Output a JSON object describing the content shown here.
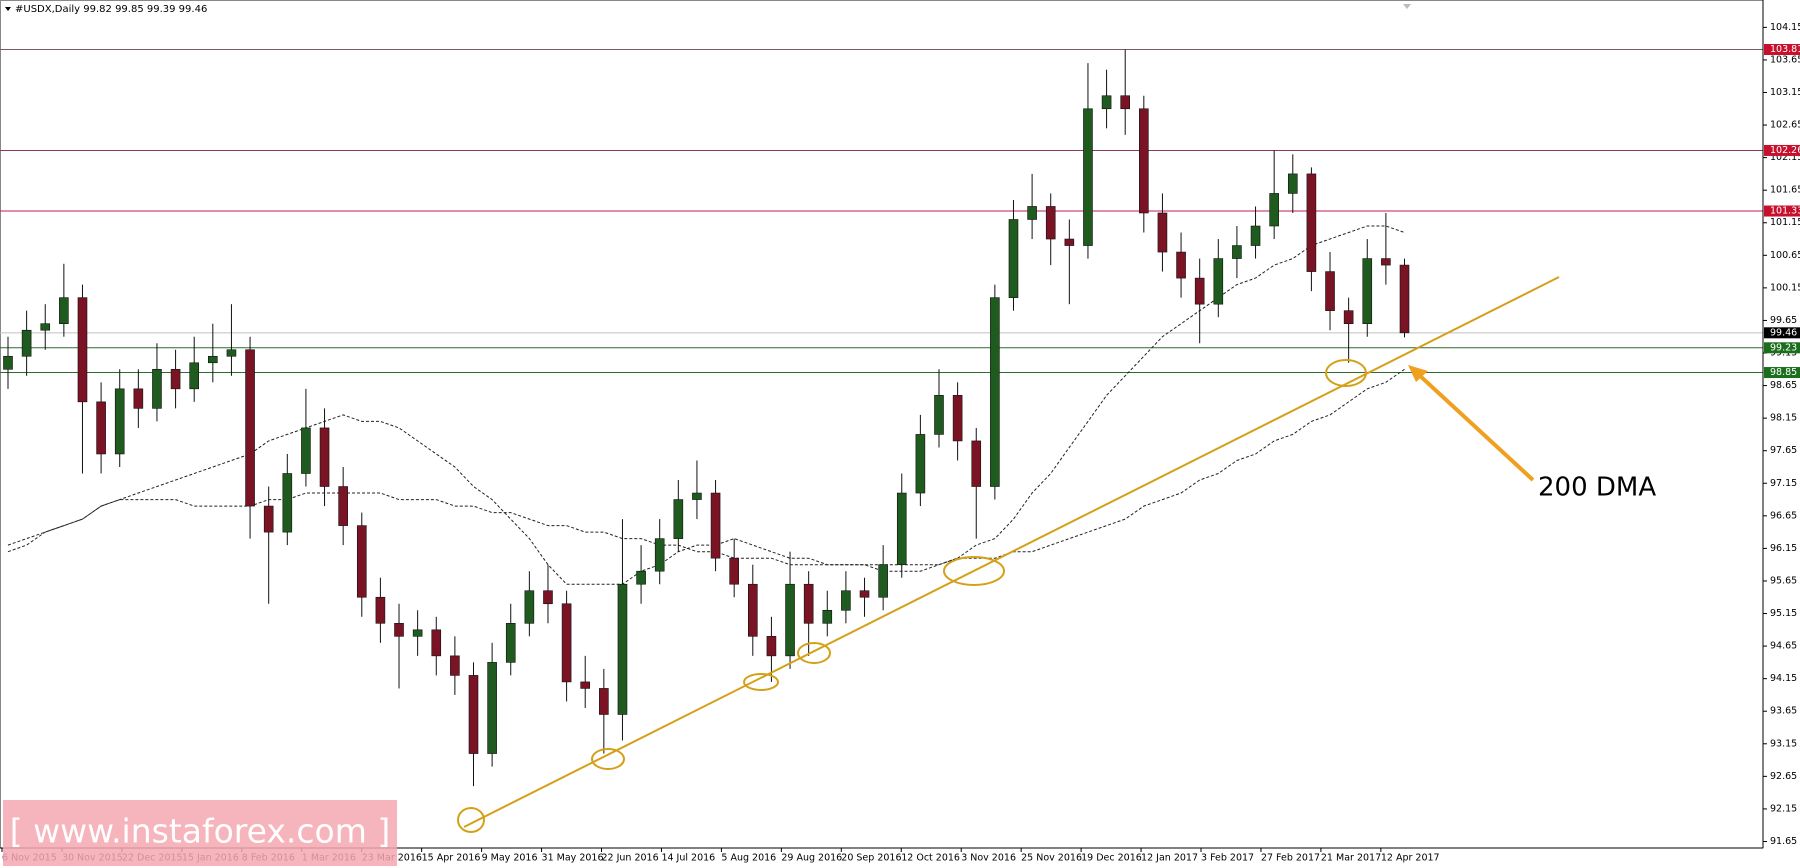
{
  "chart_data": {
    "type": "candlestick",
    "title": "#USDX,Daily  99.82 99.85 99.39 99.46",
    "xtick_labels": [
      "6 Nov 2015",
      "30 Nov 2015",
      "22 Dec 2015",
      "15 Jan 2016",
      "8 Feb 2016",
      "1 Mar 2016",
      "23 Mar 2016",
      "15 Apr 2016",
      "9 May 2016",
      "31 May 2016",
      "22 Jun 2016",
      "14 Jul 2016",
      "5 Aug 2016",
      "29 Aug 2016",
      "20 Sep 2016",
      "12 Oct 2016",
      "3 Nov 2016",
      "25 Nov 2016",
      "19 Dec 2016",
      "12 Jan 2017",
      "3 Feb 2017",
      "27 Feb 2017",
      "21 Mar 2017",
      "12 Apr 2017"
    ],
    "ylim": [
      91.55,
      104.57
    ],
    "yticks": [
      91.65,
      92.15,
      92.65,
      93.15,
      93.65,
      94.15,
      94.65,
      95.15,
      95.65,
      96.15,
      96.65,
      97.15,
      97.65,
      98.15,
      98.65,
      99.15,
      99.65,
      100.15,
      100.65,
      101.15,
      101.65,
      102.15,
      102.65,
      103.15,
      103.65,
      104.15
    ],
    "up_color": "#1f5a1f",
    "down_color": "#7a1424",
    "open": [
      98.9,
      99.1,
      99.5,
      99.6,
      100.0,
      98.4,
      97.6,
      98.6,
      98.3,
      98.9,
      98.6,
      99.0,
      99.1,
      99.2,
      96.8,
      96.4,
      97.3,
      98.0,
      97.1,
      96.5,
      95.4,
      95.0,
      94.8,
      94.9,
      94.5,
      94.2,
      93.0,
      94.4,
      95.0,
      95.5,
      95.3,
      94.1,
      94.0,
      93.6,
      95.6,
      95.8,
      96.3,
      96.9,
      97.0,
      96.0,
      95.6,
      94.8,
      94.5,
      95.6,
      95.0,
      95.2,
      95.5,
      95.4,
      95.9,
      97.0,
      97.9,
      98.5,
      97.8,
      97.1,
      100.0,
      101.2,
      101.4,
      100.9,
      100.8,
      102.9,
      103.1,
      102.9,
      101.3,
      100.7,
      100.3,
      99.9,
      100.6,
      100.8,
      101.1,
      101.6,
      101.9,
      100.4,
      99.8,
      99.6,
      100.6,
      100.5
    ],
    "high": [
      99.4,
      99.8,
      99.9,
      100.52,
      100.2,
      98.7,
      98.9,
      98.9,
      99.3,
      99.2,
      99.4,
      99.6,
      99.9,
      99.4,
      97.1,
      97.6,
      98.6,
      98.3,
      97.4,
      96.7,
      95.7,
      95.3,
      95.2,
      95.1,
      94.8,
      94.4,
      94.7,
      95.3,
      95.8,
      95.9,
      95.5,
      94.5,
      94.3,
      96.6,
      96.2,
      96.6,
      97.2,
      97.5,
      97.2,
      96.3,
      95.9,
      95.1,
      96.1,
      95.8,
      95.5,
      95.8,
      95.7,
      96.2,
      97.3,
      98.2,
      98.9,
      98.7,
      98.0,
      100.2,
      101.5,
      101.9,
      101.6,
      101.2,
      103.6,
      103.5,
      103.81,
      103.1,
      101.6,
      101.0,
      100.6,
      100.9,
      101.1,
      101.4,
      102.26,
      102.2,
      102.0,
      100.7,
      100.0,
      100.9,
      101.3,
      100.6
    ],
    "low": [
      98.6,
      98.8,
      99.2,
      99.4,
      97.3,
      97.3,
      97.4,
      98.0,
      98.1,
      98.3,
      98.4,
      98.7,
      98.8,
      96.3,
      95.3,
      96.2,
      97.1,
      96.8,
      96.2,
      95.1,
      94.7,
      94.0,
      94.5,
      94.2,
      93.9,
      92.5,
      92.8,
      94.2,
      94.8,
      95.0,
      93.8,
      93.7,
      93.0,
      93.2,
      95.3,
      95.6,
      96.1,
      96.6,
      95.8,
      95.4,
      94.5,
      94.1,
      94.3,
      94.5,
      94.8,
      95.0,
      95.1,
      95.2,
      95.7,
      96.8,
      97.7,
      97.5,
      96.3,
      96.9,
      99.8,
      100.9,
      100.5,
      99.9,
      100.6,
      102.6,
      102.5,
      101.0,
      100.4,
      100.0,
      99.3,
      99.7,
      100.3,
      100.6,
      100.9,
      101.3,
      100.1,
      99.5,
      99.0,
      99.4,
      100.2,
      99.39
    ],
    "close": [
      99.1,
      99.5,
      99.6,
      100.0,
      98.4,
      97.6,
      98.6,
      98.3,
      98.9,
      98.6,
      99.0,
      99.1,
      99.2,
      96.8,
      96.4,
      97.3,
      98.0,
      97.1,
      96.5,
      95.4,
      95.0,
      94.8,
      94.9,
      94.5,
      94.2,
      93.0,
      94.4,
      95.0,
      95.5,
      95.3,
      94.1,
      94.0,
      93.6,
      95.6,
      95.8,
      96.3,
      96.9,
      97.0,
      96.0,
      95.6,
      94.8,
      94.5,
      95.6,
      95.0,
      95.2,
      95.5,
      95.4,
      95.9,
      97.0,
      97.9,
      98.5,
      97.8,
      97.1,
      100.0,
      101.2,
      101.4,
      100.9,
      100.8,
      102.9,
      103.1,
      102.9,
      101.3,
      100.7,
      100.3,
      99.9,
      100.6,
      100.8,
      101.1,
      101.6,
      101.9,
      100.4,
      99.8,
      99.6,
      100.6,
      100.5,
      99.46
    ],
    "moving_averages": [
      {
        "color": "#222222",
        "values": [
          96.2,
          96.3,
          96.4,
          96.5,
          96.6,
          96.8,
          96.9,
          97.0,
          97.1,
          97.2,
          97.3,
          97.4,
          97.5,
          97.6,
          97.8,
          97.9,
          98.0,
          98.1,
          98.2,
          98.1,
          98.1,
          98.0,
          97.8,
          97.6,
          97.4,
          97.1,
          96.9,
          96.6,
          96.3,
          95.9,
          95.6,
          95.6,
          95.6,
          95.6,
          95.8,
          95.9,
          96.1,
          96.2,
          96.2,
          96.3,
          96.2,
          96.1,
          96.0,
          96.0,
          95.9,
          95.9,
          95.9,
          95.8,
          95.8,
          95.8,
          95.9,
          96.0,
          96.2,
          96.3,
          96.6,
          97.0,
          97.3,
          97.7,
          98.1,
          98.5,
          98.8,
          99.1,
          99.4,
          99.6,
          99.8,
          100.0,
          100.2,
          100.3,
          100.5,
          100.6,
          100.8,
          100.9,
          101.0,
          101.1,
          101.1,
          101.0
        ]
      },
      {
        "color": "#222222",
        "values": [
          96.1,
          96.2,
          96.4,
          96.5,
          96.6,
          96.8,
          96.9,
          96.9,
          96.9,
          96.9,
          96.8,
          96.8,
          96.8,
          96.8,
          96.9,
          96.9,
          97.0,
          97.0,
          97.0,
          97.0,
          97.0,
          96.9,
          96.9,
          96.9,
          96.8,
          96.8,
          96.7,
          96.7,
          96.6,
          96.5,
          96.5,
          96.4,
          96.4,
          96.3,
          96.3,
          96.2,
          96.2,
          96.1,
          96.1,
          96.0,
          96.0,
          96.0,
          95.9,
          95.9,
          95.9,
          95.9,
          95.9,
          95.9,
          95.9,
          95.9,
          95.9,
          96.0,
          96.0,
          96.0,
          96.1,
          96.1,
          96.2,
          96.3,
          96.4,
          96.5,
          96.6,
          96.8,
          96.9,
          97.0,
          97.2,
          97.3,
          97.5,
          97.6,
          97.8,
          97.9,
          98.1,
          98.2,
          98.4,
          98.6,
          98.7,
          98.9
        ]
      }
    ],
    "levels": [
      {
        "value": 103.81,
        "color": "#7a5c5c",
        "label_color": "#c8102e"
      },
      {
        "value": 102.26,
        "color": "#8b3a5a",
        "label_color": "#c8102e"
      },
      {
        "value": 101.33,
        "color": "#c2185b",
        "label_color": "#c8102e"
      },
      {
        "value": 99.46,
        "color": "#c0c0c0",
        "label_color": "#000000"
      },
      {
        "value": 99.23,
        "color": "#2e6b2e",
        "label_color": "#1b6e1b"
      },
      {
        "value": 98.85,
        "color": "#2e6b2e",
        "label_color": "#1b6e1b"
      }
    ],
    "annotation": "200 DMA",
    "watermark": "[ www.instaforex.com ]"
  }
}
